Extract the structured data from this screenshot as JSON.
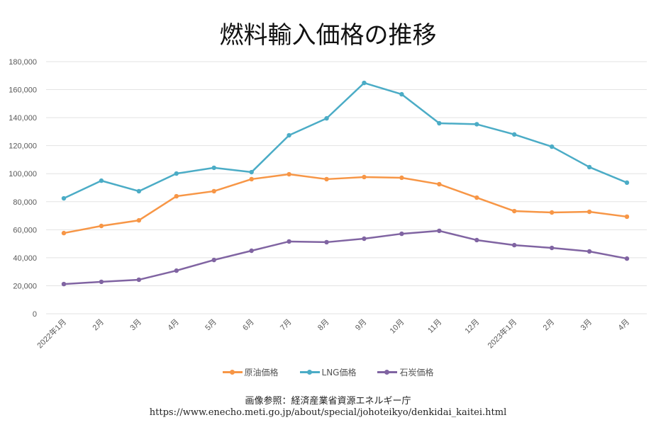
{
  "chart_data": {
    "type": "line",
    "title": "燃料輸入価格の推移",
    "categories": [
      "2022年1月",
      "2月",
      "3月",
      "4月",
      "5月",
      "6月",
      "7月",
      "8月",
      "9月",
      "10月",
      "11月",
      "12月",
      "2023年1月",
      "2月",
      "3月",
      "4月"
    ],
    "ylim": [
      0,
      180000
    ],
    "yticks": [
      "0",
      "20,000",
      "40,000",
      "60,000",
      "80,000",
      "100,000",
      "120,000",
      "140,000",
      "160,000",
      "180,000"
    ],
    "grid": true,
    "legend_position": "bottom",
    "series": [
      {
        "name": "原油価格",
        "color": "#f79646",
        "values": [
          57600,
          62700,
          66700,
          83900,
          87500,
          96100,
          99600,
          96100,
          97600,
          97100,
          92500,
          82900,
          73300,
          72300,
          72800,
          69300
        ]
      },
      {
        "name": "LNG価格",
        "color": "#4bacc6",
        "values": [
          82400,
          95000,
          87500,
          100100,
          104200,
          101100,
          127400,
          139500,
          164800,
          156700,
          136000,
          135300,
          128000,
          119300,
          104700,
          93600
        ]
      },
      {
        "name": "石炭価格",
        "color": "#8064a2",
        "values": [
          21200,
          22800,
          24300,
          30800,
          38400,
          45000,
          51600,
          51100,
          53600,
          57100,
          59200,
          52600,
          49000,
          47000,
          44500,
          39400
        ]
      }
    ]
  },
  "source": {
    "line1": "画像参照：経済産業省資源エネルギー庁",
    "line2": "https://www.enecho.meti.go.jp/about/special/johoteikyo/denkidai_kaitei.html"
  }
}
